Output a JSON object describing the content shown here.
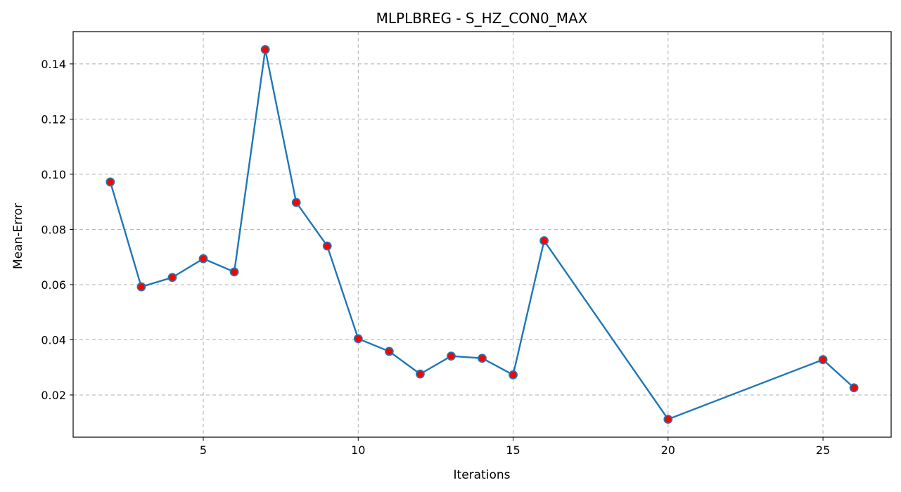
{
  "chart_data": {
    "type": "line",
    "title": "MLPLBREG - S_HZ_CON0_MAX",
    "xlabel": "Iterations",
    "ylabel": "Mean-Error",
    "xlim": [
      0.8,
      27.2
    ],
    "ylim": [
      0.0047,
      0.1517
    ],
    "xticks": [
      5,
      10,
      15,
      20,
      25
    ],
    "yticks": [
      0.02,
      0.04,
      0.06,
      0.08,
      0.1,
      0.12,
      0.14
    ],
    "ytick_labels": [
      "0.02",
      "0.04",
      "0.06",
      "0.08",
      "0.10",
      "0.12",
      "0.14"
    ],
    "grid": true,
    "colors": {
      "line": "#1f77b4",
      "marker_fill": "#ff0000",
      "marker_edge": "#1f77b4",
      "grid": "#b0b0b0"
    },
    "series": [
      {
        "x": [
          2,
          3,
          4,
          5,
          6,
          7,
          8,
          9,
          10,
          11,
          12,
          13,
          14,
          15,
          16,
          20,
          25,
          26
        ],
        "y": [
          0.0972,
          0.0592,
          0.0626,
          0.0694,
          0.0646,
          0.1452,
          0.0898,
          0.074,
          0.0404,
          0.0358,
          0.0276,
          0.0341,
          0.0333,
          0.0273,
          0.0759,
          0.0112,
          0.0328,
          0.0226
        ]
      }
    ]
  }
}
